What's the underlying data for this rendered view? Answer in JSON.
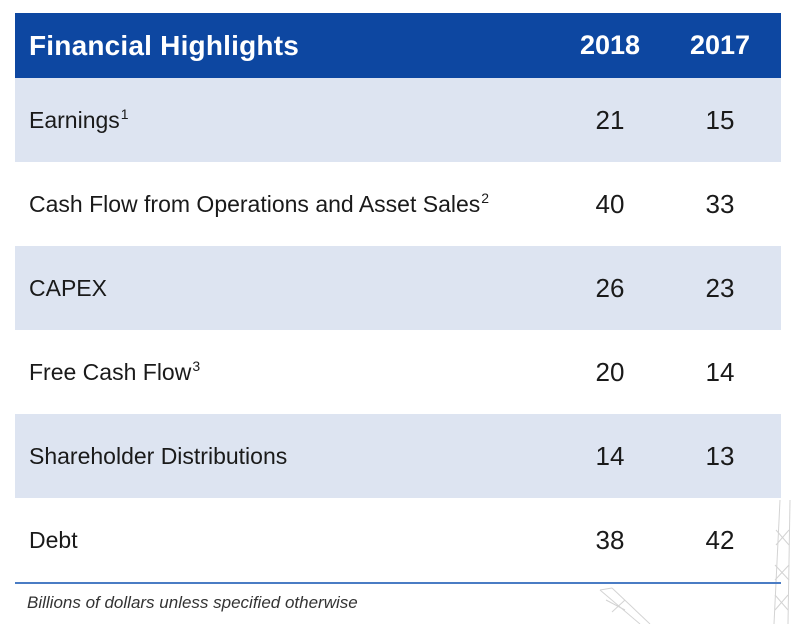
{
  "table": {
    "title": "Financial Highlights",
    "columns": [
      "2018",
      "2017"
    ],
    "rows": [
      {
        "label": "Earnings",
        "footnote": "1",
        "v2018": "21",
        "v2017": "15"
      },
      {
        "label": "Cash Flow from Operations and Asset Sales",
        "footnote": "2",
        "v2018": "40",
        "v2017": "33"
      },
      {
        "label": "CAPEX",
        "footnote": "",
        "v2018": "26",
        "v2017": "23"
      },
      {
        "label": "Free Cash Flow",
        "footnote": "3",
        "v2018": "20",
        "v2017": "14"
      },
      {
        "label": "Shareholder Distributions",
        "footnote": "",
        "v2018": "14",
        "v2017": "13"
      },
      {
        "label": "Debt",
        "footnote": "",
        "v2018": "38",
        "v2017": "42"
      }
    ],
    "note": "Billions of dollars unless specified otherwise"
  },
  "colors": {
    "header_bg": "#0d47a1",
    "shaded_row": "#dde4f1",
    "rule": "#4a7cc4"
  }
}
